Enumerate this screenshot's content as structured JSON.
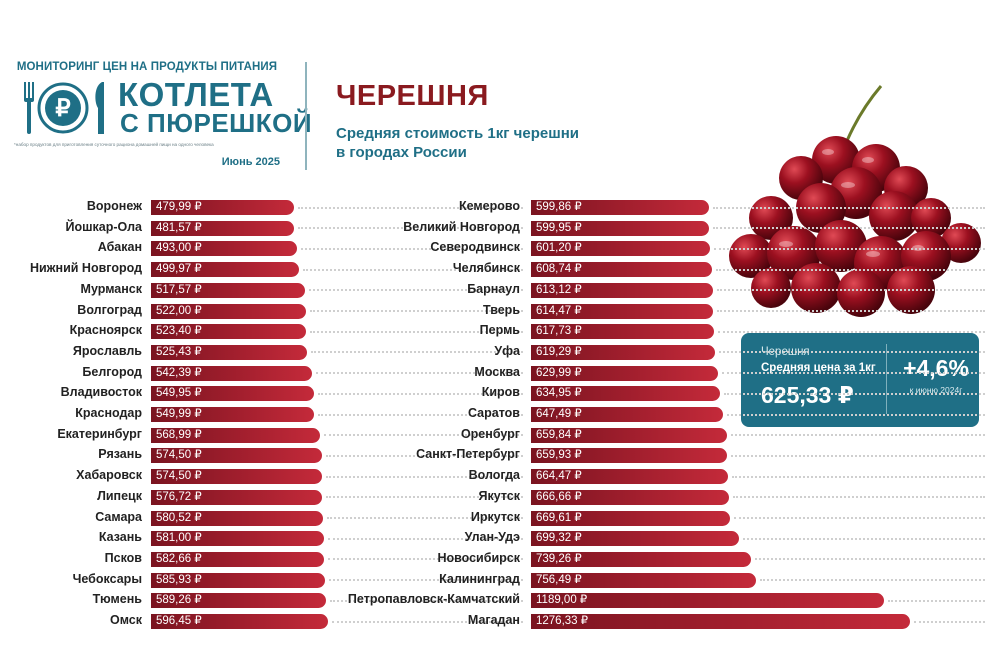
{
  "brand": {
    "top": "МОНИТОРИНГ ЦЕН НА ПРОДУКТЫ ПИТАНИЯ",
    "name_line1": "КОТЛЕТА",
    "name_line2": "С ПЮРЕШКОЙ",
    "note": "*набор продуктов для приготовления суточного рациона домашней пищи на одного человека",
    "date": "Июнь 2025",
    "logo_icon": "plate-with-ruble-fork-knife"
  },
  "header": {
    "title": "ЧЕРЕШНЯ",
    "subtitle_line1": "Средняя стоимость 1кг черешни",
    "subtitle_line2": "в городах России"
  },
  "colors": {
    "teal": "#1f6f86",
    "bar_dark": "#7a1420",
    "bar_light": "#c42a3a",
    "title_red": "#8a1a1f"
  },
  "card": {
    "category": "Черешня",
    "label": "Средняя цена за 1кг",
    "price": "625,33 ₽",
    "change": "+4,6%",
    "change_note": "к июню 2024г"
  },
  "chart_data": {
    "type": "bar",
    "orientation": "horizontal",
    "unit": "₽",
    "columns": [
      {
        "categories": [
          "Воронеж",
          "Йошкар-Ола",
          "Абакан",
          "Нижний Новгород",
          "Мурманск",
          "Волгоград",
          "Красноярск",
          "Ярославль",
          "Белгород",
          "Владивосток",
          "Краснодар",
          "Екатеринбург",
          "Рязань",
          "Хабаровск",
          "Липецк",
          "Самара",
          "Казань",
          "Псков",
          "Чебоксары",
          "Тюмень",
          "Омск"
        ],
        "values": [
          479.99,
          481.57,
          493.0,
          499.97,
          517.57,
          522.0,
          523.4,
          525.43,
          542.39,
          549.95,
          549.99,
          568.99,
          574.5,
          574.5,
          576.72,
          580.52,
          581.0,
          582.66,
          585.93,
          589.26,
          596.45
        ],
        "labels": [
          "479,99 ₽",
          "481,57 ₽",
          "493,00 ₽",
          "499,97 ₽",
          "517,57 ₽",
          "522,00 ₽",
          "523,40 ₽",
          "525,43 ₽",
          "542,39 ₽",
          "549,95 ₽",
          "549,99 ₽",
          "568,99 ₽",
          "574,50 ₽",
          "574,50 ₽",
          "576,72 ₽",
          "580,52 ₽",
          "581,00 ₽",
          "582,66 ₽",
          "585,93 ₽",
          "589,26 ₽",
          "596,45 ₽"
        ]
      },
      {
        "categories": [
          "Кемерово",
          "Великий Новгород",
          "Северодвинск",
          "Челябинск",
          "Барнаул",
          "Тверь",
          "Пермь",
          "Уфа",
          "Москва",
          "Киров",
          "Саратов",
          "Оренбург",
          "Санкт-Петербург",
          "Вологда",
          "Якутск",
          "Иркутск",
          "Улан-Удэ",
          "Новосибирск",
          "Калининград",
          "Петропавловск-Камчатский",
          "Магадан"
        ],
        "values": [
          599.86,
          599.95,
          601.2,
          608.74,
          613.12,
          614.47,
          617.73,
          619.29,
          629.99,
          634.95,
          647.49,
          659.84,
          659.93,
          664.47,
          666.66,
          669.61,
          699.32,
          739.26,
          756.49,
          1189.0,
          1276.33
        ],
        "labels": [
          "599,86 ₽",
          "599,95 ₽",
          "601,20 ₽",
          "608,74 ₽",
          "613,12 ₽",
          "614,47 ₽",
          "617,73 ₽",
          "619,29 ₽",
          "629,99 ₽",
          "634,95 ₽",
          "647,49 ₽",
          "659,84 ₽",
          "659,93 ₽",
          "664,47 ₽",
          "666,66 ₽",
          "669,61 ₽",
          "699,32 ₽",
          "739,26 ₽",
          "756,49 ₽",
          "1189,00 ₽",
          "1276,33 ₽"
        ]
      }
    ],
    "legend": "none",
    "grid": false
  }
}
